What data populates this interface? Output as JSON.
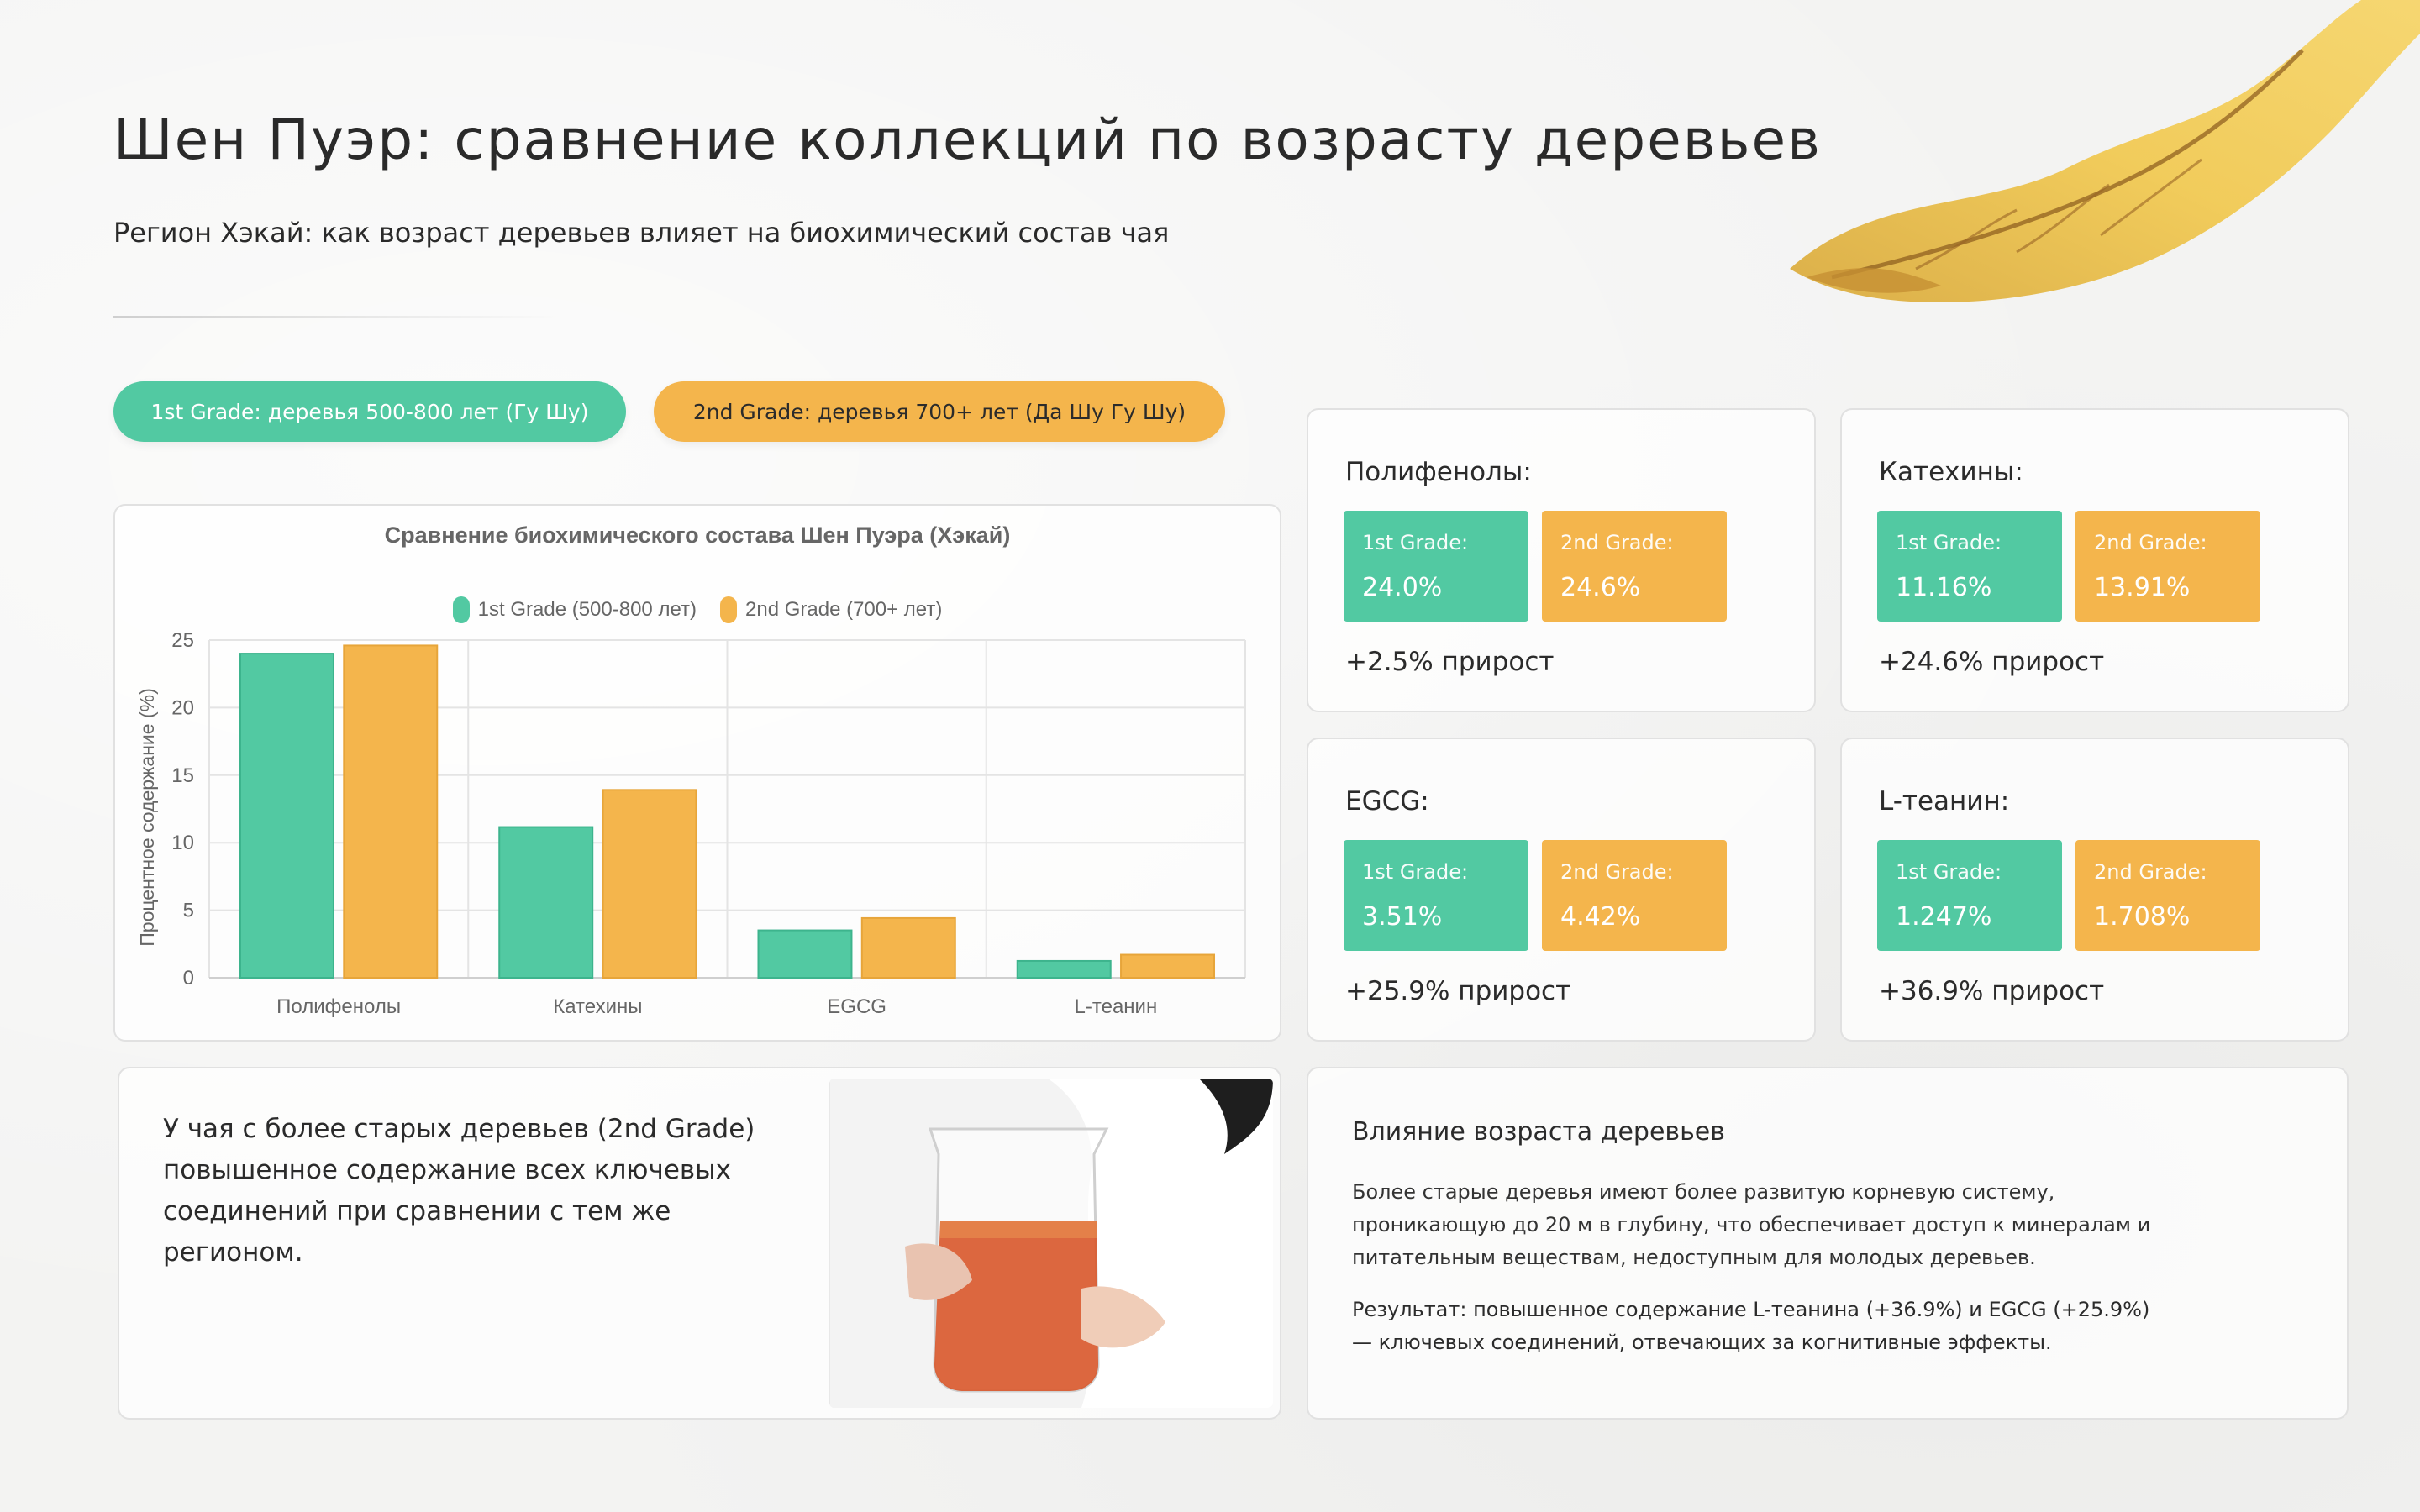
{
  "header": {
    "title": "Шен Пуэр: сравнение коллекций по возрасту деревьев",
    "subtitle": "Регион Хэкай: как возраст деревьев влияет на биохимический состав чая"
  },
  "grade_pills": {
    "grade1": "1st Grade: деревья 500-800 лет (Гу Шу)",
    "grade2": "2nd Grade: деревья 700+ лет (Да Шу Гу Шу)"
  },
  "colors": {
    "grade1": "#52c9a2",
    "grade2": "#f4b54c"
  },
  "chart_data": {
    "type": "bar",
    "title": "Сравнение биохимического состава Шен Пуэра (Хэкай)",
    "ylabel": "Процентное содержание (%)",
    "xlabel": "",
    "categories": [
      "Полифенолы",
      "Катехины",
      "EGCG",
      "L-теанин"
    ],
    "series": [
      {
        "name": "1st Grade (500-800 лет)",
        "values": [
          24.0,
          11.16,
          3.51,
          1.247
        ],
        "color": "#52c9a2"
      },
      {
        "name": "2nd Grade (700+ лет)",
        "values": [
          24.6,
          13.91,
          4.42,
          1.708
        ],
        "color": "#f4b54c"
      }
    ],
    "ylim": [
      0,
      25
    ],
    "yticks": [
      0,
      5,
      10,
      15,
      20,
      25
    ],
    "grid": true,
    "legend": "top-center"
  },
  "metrics": [
    {
      "name": "Полифенолы:",
      "g1_label": "1st Grade:",
      "g1_value": "24.0%",
      "g2_label": "2nd Grade:",
      "g2_value": "24.6%",
      "growth": "+2.5% прирост"
    },
    {
      "name": "Катехины:",
      "g1_label": "1st Grade:",
      "g1_value": "11.16%",
      "g2_label": "2nd Grade:",
      "g2_value": "13.91%",
      "growth": "+24.6% прирост"
    },
    {
      "name": "EGCG:",
      "g1_label": "1st Grade:",
      "g1_value": "3.51%",
      "g2_label": "2nd Grade:",
      "g2_value": "4.42%",
      "growth": "+25.9% прирост"
    },
    {
      "name": "L-теанин:",
      "g1_label": "1st Grade:",
      "g1_value": "1.247%",
      "g2_label": "2nd Grade:",
      "g2_value": "1.708%",
      "growth": "+36.9% прирост"
    }
  ],
  "note": {
    "text": "У чая с более старых деревьев (2nd Grade) повышенное содержание всех ключевых соединений при сравнении с тем же регионом."
  },
  "impact": {
    "title": "Влияние возраста деревьев",
    "body": "Более старые деревья имеют более развитую корневую систему, проникающую до 20 м в глубину, что обеспечивает доступ к минералам и питательным веществам, недоступным для молодых деревьев.",
    "result": "Результат: повышенное содержание L-теанина (+36.9%) и EGCG (+25.9%) — ключевых соединений, отвечающих за когнитивные эффекты."
  }
}
